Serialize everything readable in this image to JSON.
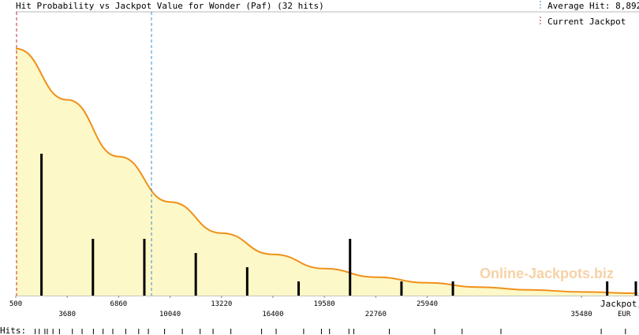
{
  "chart_data": {
    "type": "bar",
    "title": "Hit Probability vs Jackpot Value for Wonder (Paf) (32 hits)",
    "xlabel": "Jackpot, EUR",
    "xlabel_line1": "Jackpot,",
    "xlabel_line2": "EUR",
    "hits_label": "Hits:",
    "watermark": "Online-Jackpots.biz",
    "xlim": [
      500,
      38940
    ],
    "ylim": [
      0,
      10
    ],
    "grid": false,
    "legend_position": "top-right",
    "x_ticks_top": [
      "500",
      "6860",
      "13220",
      "19580",
      "25940"
    ],
    "x_ticks_bottom": [
      "3680",
      "10040",
      "16400",
      "22760",
      "35480"
    ],
    "x_tick_values_top": [
      500,
      6860,
      13220,
      19580,
      25940
    ],
    "x_tick_values_bottom": [
      3680,
      10040,
      16400,
      22760,
      35480
    ],
    "legend": [
      {
        "label": "Average Hit: 8,892",
        "color": "#3b8fd0",
        "value": 8892
      },
      {
        "label": "Current Jackpot",
        "color": "#c8283c",
        "value": 500
      }
    ],
    "series": [
      {
        "type": "bar",
        "values": [
          {
            "x": 2090,
            "y": 5
          },
          {
            "x": 5270,
            "y": 2
          },
          {
            "x": 8450,
            "y": 2
          },
          {
            "x": 11630,
            "y": 1.5
          },
          {
            "x": 14810,
            "y": 1
          },
          {
            "x": 17990,
            "y": 0.5
          },
          {
            "x": 21170,
            "y": 2
          },
          {
            "x": 24350,
            "y": 0.5
          },
          {
            "x": 27530,
            "y": 0.5
          },
          {
            "x": 37070,
            "y": 0.5
          },
          {
            "x": 38940,
            "y": 0.5
          }
        ]
      },
      {
        "type": "area",
        "color": "#f0901a",
        "fill": "#fdf8c7",
        "values": [
          {
            "x": 500,
            "y": 8.7
          },
          {
            "x": 3680,
            "y": 6.9
          },
          {
            "x": 6860,
            "y": 4.9
          },
          {
            "x": 10040,
            "y": 3.3
          },
          {
            "x": 13220,
            "y": 2.2
          },
          {
            "x": 16400,
            "y": 1.45
          },
          {
            "x": 19580,
            "y": 0.95
          },
          {
            "x": 22760,
            "y": 0.65
          },
          {
            "x": 25940,
            "y": 0.45
          },
          {
            "x": 29120,
            "y": 0.3
          },
          {
            "x": 32300,
            "y": 0.2
          },
          {
            "x": 35480,
            "y": 0.13
          },
          {
            "x": 38940,
            "y": 0.08
          }
        ]
      }
    ],
    "hit_marks": [
      1700,
      1950,
      2300,
      2450,
      2800,
      3200,
      4000,
      4600,
      5300,
      5900,
      6500,
      7300,
      8100,
      8700,
      9700,
      10800,
      11900,
      12700,
      13800,
      15700,
      16600,
      18300,
      19400,
      19900,
      21100,
      21400,
      23600,
      26400,
      28100,
      30500,
      36700,
      38200
    ]
  }
}
